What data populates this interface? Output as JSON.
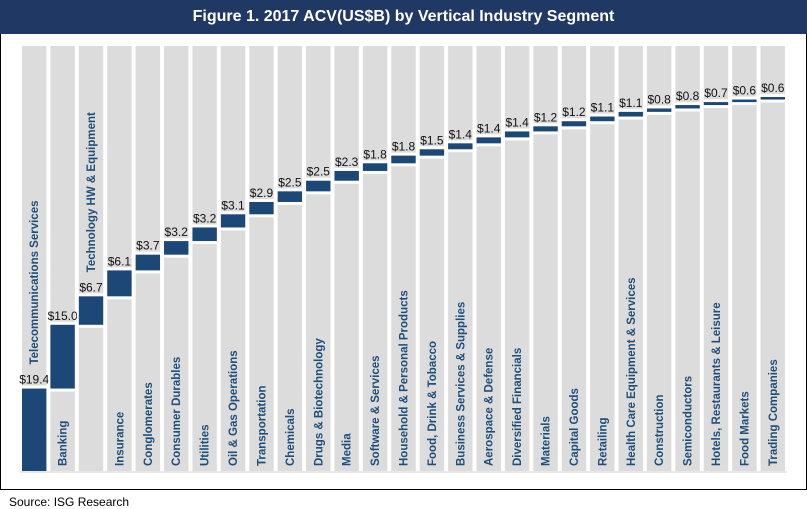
{
  "chart_data": {
    "type": "bar",
    "subtype": "waterfall",
    "title": "Figure 1.  2017 ACV(US$B) by Vertical Industry Segment",
    "categories": [
      "Telecommunications Services",
      "Banking",
      "Technology HW & Equipment",
      "Insurance",
      "Conglomerates",
      "Consumer Durables",
      "Utilities",
      "Oil & Gas Operations",
      "Transportation",
      "Chemicals",
      "Drugs & Biotechnology",
      "Media",
      "Software & Services",
      "Household & Personal Products",
      "Food, Drink & Tobacco",
      "Business Services & Supplies",
      "Aerospace & Defense",
      "Diversified Financials",
      "Materials",
      "Capital Goods",
      "Retailing",
      "Health Care Equipment & Services",
      "Construction",
      "Semiconductors",
      "Hotels, Restaurants & Leisure",
      "Food Markets",
      "Trading Companies"
    ],
    "values": [
      19.4,
      15.0,
      6.7,
      6.1,
      3.7,
      3.2,
      3.2,
      3.1,
      2.9,
      2.5,
      2.5,
      2.3,
      1.8,
      1.8,
      1.5,
      1.4,
      1.4,
      1.4,
      1.2,
      1.2,
      1.1,
      1.1,
      0.8,
      0.8,
      0.7,
      0.6,
      0.6
    ],
    "data_labels": [
      "$19.4",
      "$15.0",
      "$6.7",
      "$6.1",
      "$3.7",
      "$3.2",
      "$3.2",
      "$3.1",
      "$2.9",
      "$2.5",
      "$2.5",
      "$2.3",
      "$1.8",
      "$1.8",
      "$1.5",
      "$1.4",
      "$1.4",
      "$1.4",
      "$1.2",
      "$1.2",
      "$1.1",
      "$1.1",
      "$0.8",
      "$0.8",
      "$0.7",
      "$0.6",
      "$0.6"
    ],
    "xlabel": "",
    "ylabel": "",
    "ylim": [
      0,
      100
    ],
    "grid": false,
    "legend": "none",
    "colors": {
      "bar": "#1b4876",
      "column_background": "#dcdcdc",
      "category_label": "#1f4e79",
      "title_background": "#1f3864"
    }
  },
  "source": "Source: ISG Research"
}
